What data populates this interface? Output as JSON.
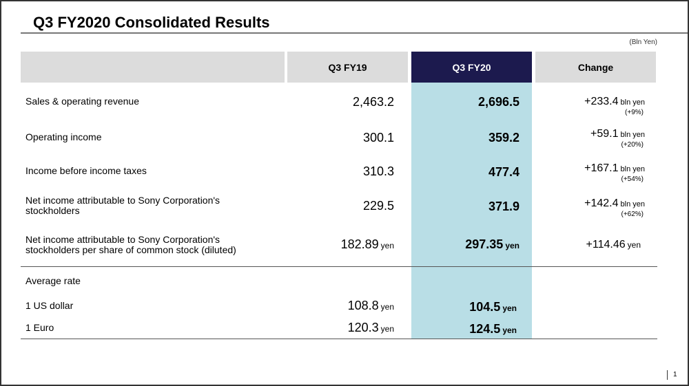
{
  "title": "Q3 FY2020  Consolidated Results",
  "unit": "(Bln Yen)",
  "headers": {
    "col1": "Q3 FY19",
    "col2": "Q3 FY20",
    "col3": "Change"
  },
  "rows": [
    {
      "label": "Sales & operating revenue",
      "fy19": "2,463.2",
      "fy20": "2,696.5",
      "change": "+233.4",
      "change_unit": "bln yen",
      "change_pct": "(+9%)"
    },
    {
      "label": "Operating income",
      "fy19": "300.1",
      "fy20": "359.2",
      "change": "+59.1",
      "change_unit": "bln yen",
      "change_pct": "(+20%)"
    },
    {
      "label": "Income before income taxes",
      "fy19": "310.3",
      "fy20": "477.4",
      "change": "+167.1",
      "change_unit": "bln yen",
      "change_pct": "(+54%)"
    },
    {
      "label": "Net income attributable to Sony Corporation's stockholders",
      "fy19": "229.5",
      "fy20": "371.9",
      "change": "+142.4",
      "change_unit": "bln yen",
      "change_pct": "(+62%)"
    },
    {
      "label": "Net income attributable to Sony Corporation's stockholders per share of common stock (diluted)",
      "fy19": "182.89",
      "fy19_unit": "yen",
      "fy20": "297.35",
      "fy20_unit": "yen",
      "change": "+114.46",
      "change_unit": "yen"
    }
  ],
  "avg_rate": {
    "label": "Average rate",
    "items": [
      {
        "label": "1 US dollar",
        "fy19": "108.8",
        "fy20": "104.5",
        "unit": "yen"
      },
      {
        "label": "1 Euro",
        "fy19": "120.3",
        "fy20": "124.5",
        "unit": "yen"
      }
    ]
  },
  "page_number": "1",
  "colors": {
    "navy": "#1c1a4e",
    "highlight": "#b9dee6",
    "header_gray": "#dcdcdc"
  }
}
